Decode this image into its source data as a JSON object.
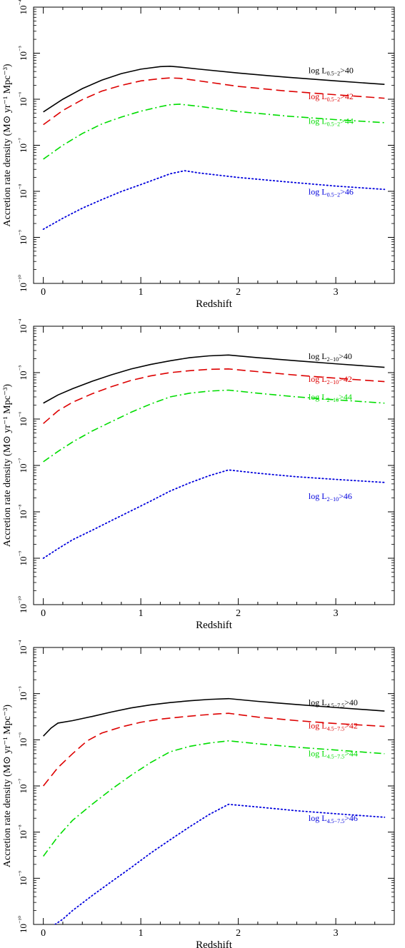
{
  "chart_data": [
    {
      "type": "line",
      "xlabel": "Redshift",
      "ylabel": "Accretion rate density (M⊙ yr⁻¹ Mpc⁻³)",
      "xlim": [
        -0.1,
        3.6
      ],
      "ylim_log10": [
        -10,
        -4
      ],
      "yscale": "log",
      "x_ticks": [
        0,
        1,
        2,
        3
      ],
      "y_ticks": [
        {
          "exp": -10,
          "label": "10⁻¹⁰"
        },
        {
          "exp": -9,
          "label": "10⁻⁹"
        },
        {
          "exp": -8,
          "label": "10⁻⁸"
        },
        {
          "exp": -7,
          "label": "10⁻⁷"
        },
        {
          "exp": -6,
          "label": "10⁻⁶"
        },
        {
          "exp": -5,
          "label": "10⁻⁵"
        },
        {
          "exp": -4,
          "label": "10⁻⁴"
        }
      ],
      "band": "0.5−2",
      "series": [
        {
          "name": "log L0.5−2>40",
          "label_prefix": "log L",
          "label_sub": "0.5−2",
          "label_suffix": ">40",
          "color": "#000000",
          "style": "solid",
          "x": [
            0,
            0.2,
            0.4,
            0.6,
            0.8,
            1.0,
            1.2,
            1.3,
            1.4,
            1.6,
            2.0,
            2.5,
            3.0,
            3.5
          ],
          "y": [
            5.3e-07,
            1e-06,
            1.7e-06,
            2.6e-06,
            3.6e-06,
            4.5e-06,
            5.1e-06,
            5.2e-06,
            5e-06,
            4.5e-06,
            3.7e-06,
            3e-06,
            2.5e-06,
            2.1e-06
          ],
          "label_x": 2.72,
          "label_y": 3.7e-06
        },
        {
          "name": "log L0.5−2>42",
          "label_prefix": "log L",
          "label_sub": "0.5−2",
          "label_suffix": ">42",
          "color": "#dd0000",
          "style": "dashed",
          "x": [
            0,
            0.2,
            0.4,
            0.6,
            0.8,
            1.0,
            1.2,
            1.3,
            1.4,
            1.6,
            2.0,
            2.5,
            3.0,
            3.5
          ],
          "y": [
            2.8e-07,
            5.7e-07,
            9.8e-07,
            1.5e-06,
            2e-06,
            2.5e-06,
            2.8e-06,
            2.9e-06,
            2.85e-06,
            2.5e-06,
            1.9e-06,
            1.5e-06,
            1.25e-06,
            1.05e-06
          ],
          "label_x": 2.72,
          "label_y": 1e-06
        },
        {
          "name": "log L0.5−2>44",
          "label_prefix": "log L",
          "label_sub": "0.5−2",
          "label_suffix": ">44",
          "color": "#00dd00",
          "style": "dashdot",
          "x": [
            0,
            0.2,
            0.4,
            0.6,
            0.8,
            1.0,
            1.2,
            1.3,
            1.4,
            1.6,
            2.0,
            2.5,
            3.0,
            3.5
          ],
          "y": [
            5e-08,
            1e-07,
            1.8e-07,
            2.9e-07,
            4.1e-07,
            5.5e-07,
            6.9e-07,
            7.6e-07,
            7.8e-07,
            7e-07,
            5.4e-07,
            4.3e-07,
            3.6e-07,
            3.1e-07
          ],
          "label_x": 2.72,
          "label_y": 2.9e-07
        },
        {
          "name": "log L0.5−2>46",
          "label_prefix": "log L",
          "label_sub": "0.5−2",
          "label_suffix": ">46",
          "color": "#0000dd",
          "style": "dotted",
          "x": [
            0,
            0.2,
            0.4,
            0.6,
            0.8,
            1.0,
            1.2,
            1.3,
            1.45,
            1.6,
            2.0,
            2.5,
            3.0,
            3.5
          ],
          "y": [
            1.5e-09,
            2.6e-09,
            4.3e-09,
            6.6e-09,
            9.9e-09,
            1.4e-08,
            2e-08,
            2.4e-08,
            2.8e-08,
            2.5e-08,
            2e-08,
            1.6e-08,
            1.3e-08,
            1.1e-08
          ],
          "label_x": 2.72,
          "label_y": 8.5e-09
        }
      ]
    },
    {
      "type": "line",
      "xlabel": "Redshift",
      "ylabel": "Accretion rate density (M⊙ yr⁻¹ Mpc⁻³)",
      "xlim": [
        -0.1,
        3.6
      ],
      "ylim_log10": [
        -10,
        -4
      ],
      "yscale": "log",
      "x_ticks": [
        0,
        1,
        2,
        3
      ],
      "y_ticks": [
        {
          "exp": -10,
          "label": "10⁻¹⁰"
        },
        {
          "exp": -9,
          "label": "10⁻⁹"
        },
        {
          "exp": -8,
          "label": "10⁻⁸"
        },
        {
          "exp": -7,
          "label": "10⁻⁷"
        },
        {
          "exp": -6,
          "label": "10⁻⁶"
        },
        {
          "exp": -5,
          "label": "10⁻⁵"
        },
        {
          "exp": -4,
          "label": "10⁻⁴"
        }
      ],
      "band": "2−10",
      "series": [
        {
          "name": "log L2−10>40",
          "label_prefix": "log L",
          "label_sub": "2−10",
          "label_suffix": ">40",
          "color": "#000000",
          "style": "solid",
          "x": [
            0,
            0.15,
            0.3,
            0.5,
            0.7,
            0.9,
            1.1,
            1.3,
            1.5,
            1.7,
            1.9,
            2.2,
            2.6,
            3.0,
            3.5
          ],
          "y": [
            2.2e-06,
            3.3e-06,
            4.5e-06,
            6.5e-06,
            9e-06,
            1.2e-05,
            1.5e-05,
            1.8e-05,
            2.1e-05,
            2.3e-05,
            2.4e-05,
            2.1e-05,
            1.8e-05,
            1.55e-05,
            1.3e-05
          ],
          "label_x": 2.72,
          "label_y": 1.95e-05
        },
        {
          "name": "log L2−10>42",
          "label_prefix": "log L",
          "label_sub": "2−10",
          "label_suffix": ">42",
          "color": "#dd0000",
          "style": "dashed",
          "x": [
            0,
            0.15,
            0.3,
            0.5,
            0.7,
            0.9,
            1.1,
            1.3,
            1.5,
            1.7,
            1.9,
            2.2,
            2.6,
            3.0,
            3.5
          ],
          "y": [
            8e-07,
            1.5e-06,
            2.3e-06,
            3.5e-06,
            5e-06,
            6.8e-06,
            8.5e-06,
            1e-05,
            1.1e-05,
            1.18e-05,
            1.2e-05,
            1.05e-05,
            8.8e-06,
            7.6e-06,
            6.4e-06
          ],
          "label_x": 2.72,
          "label_y": 6.3e-06
        },
        {
          "name": "log L2−10>44",
          "label_prefix": "log L",
          "label_sub": "2−10",
          "label_suffix": ">44",
          "color": "#00dd00",
          "style": "dashdot",
          "x": [
            0,
            0.15,
            0.3,
            0.5,
            0.7,
            0.9,
            1.1,
            1.3,
            1.5,
            1.7,
            1.9,
            2.2,
            2.6,
            3.0,
            3.5
          ],
          "y": [
            1.2e-07,
            2e-07,
            3.2e-07,
            5.5e-07,
            8.8e-07,
            1.4e-06,
            2.1e-06,
            3e-06,
            3.6e-06,
            4e-06,
            4.2e-06,
            3.6e-06,
            3e-06,
            2.6e-06,
            2.2e-06
          ],
          "label_x": 2.72,
          "label_y": 2.6e-06
        },
        {
          "name": "log L2−10>46",
          "label_prefix": "log L",
          "label_sub": "2−10",
          "label_suffix": ">46",
          "color": "#0000dd",
          "style": "dotted",
          "x": [
            0,
            0.15,
            0.3,
            0.5,
            0.7,
            0.9,
            1.1,
            1.3,
            1.5,
            1.7,
            1.9,
            2.2,
            2.6,
            3.0,
            3.5
          ],
          "y": [
            1e-09,
            1.6e-09,
            2.5e-09,
            4e-09,
            6.5e-09,
            1.05e-08,
            1.7e-08,
            2.8e-08,
            4.2e-08,
            6e-08,
            8e-08,
            6.8e-08,
            5.7e-08,
            5e-08,
            4.3e-08
          ],
          "label_x": 2.72,
          "label_y": 1.9e-08
        }
      ]
    },
    {
      "type": "line",
      "xlabel": "Redshift",
      "ylabel": "Accretion rate density (M⊙ yr⁻¹ Mpc⁻³)",
      "xlim": [
        -0.1,
        3.6
      ],
      "ylim_log10": [
        -10,
        -4
      ],
      "yscale": "log",
      "x_ticks": [
        0,
        1,
        2,
        3
      ],
      "y_ticks": [
        {
          "exp": -10,
          "label": "10⁻¹⁰"
        },
        {
          "exp": -9,
          "label": "10⁻⁹"
        },
        {
          "exp": -8,
          "label": "10⁻⁸"
        },
        {
          "exp": -7,
          "label": "10⁻⁷"
        },
        {
          "exp": -6,
          "label": "10⁻⁶"
        },
        {
          "exp": -5,
          "label": "10⁻⁵"
        },
        {
          "exp": -4,
          "label": "10⁻⁴"
        }
      ],
      "band": "4.5−7.5",
      "series": [
        {
          "name": "log L4.5−7.5>40",
          "label_prefix": "log L",
          "label_sub": "4.5−7.5",
          "label_suffix": ">40",
          "color": "#000000",
          "style": "solid",
          "x": [
            0,
            0.08,
            0.15,
            0.3,
            0.5,
            0.7,
            0.9,
            1.1,
            1.3,
            1.5,
            1.7,
            1.9,
            2.2,
            2.6,
            3.0,
            3.5
          ],
          "y": [
            1.2e-06,
            1.8e-06,
            2.3e-06,
            2.6e-06,
            3.2e-06,
            4e-06,
            4.9e-06,
            5.7e-06,
            6.4e-06,
            7e-06,
            7.5e-06,
            7.8e-06,
            6.8e-06,
            5.8e-06,
            5e-06,
            4.2e-06
          ],
          "label_x": 2.72,
          "label_y": 5.6e-06
        },
        {
          "name": "log L4.5−7.5>42",
          "label_prefix": "log L",
          "label_sub": "4.5−7.5",
          "label_suffix": ">42",
          "color": "#dd0000",
          "style": "dashed",
          "x": [
            0,
            0.15,
            0.3,
            0.45,
            0.6,
            0.8,
            1.0,
            1.2,
            1.4,
            1.6,
            1.8,
            1.9,
            2.2,
            2.6,
            3.0,
            3.5
          ],
          "y": [
            1e-07,
            2.5e-07,
            5e-07,
            9.5e-07,
            1.4e-06,
            1.9e-06,
            2.4e-06,
            2.8e-06,
            3.1e-06,
            3.4e-06,
            3.65e-06,
            3.75e-06,
            3.1e-06,
            2.6e-06,
            2.25e-06,
            1.95e-06
          ],
          "label_x": 2.72,
          "label_y": 1.75e-06
        },
        {
          "name": "log L4.5−7.5>44",
          "label_prefix": "log L",
          "label_sub": "4.5−7.5",
          "label_suffix": ">44",
          "color": "#00dd00",
          "style": "dashdot",
          "x": [
            0,
            0.15,
            0.3,
            0.5,
            0.7,
            0.9,
            1.1,
            1.3,
            1.5,
            1.7,
            1.9,
            2.2,
            2.6,
            3.0,
            3.5
          ],
          "y": [
            3e-09,
            8e-09,
            1.8e-08,
            4e-08,
            8.5e-08,
            1.7e-07,
            3.2e-07,
            5.5e-07,
            7.2e-07,
            8.5e-07,
            9.5e-07,
            8.2e-07,
            6.9e-07,
            6e-07,
            5e-07
          ],
          "label_x": 2.72,
          "label_y": 4.4e-07
        },
        {
          "name": "log L4.5−7.5>46",
          "label_prefix": "log L",
          "label_sub": "4.5−7.5",
          "label_suffix": ">46",
          "color": "#0000dd",
          "style": "dotted",
          "x": [
            0.12,
            0.2,
            0.3,
            0.5,
            0.7,
            0.9,
            1.1,
            1.3,
            1.5,
            1.7,
            1.9,
            2.2,
            2.6,
            3.0,
            3.5
          ],
          "y": [
            1e-10,
            1.3e-10,
            2e-10,
            4.2e-10,
            8.5e-10,
            1.7e-09,
            3.5e-09,
            6.8e-09,
            1.3e-08,
            2.4e-08,
            4e-08,
            3.5e-08,
            2.9e-08,
            2.5e-08,
            2.1e-08
          ],
          "label_x": 2.72,
          "label_y": 1.75e-08
        }
      ]
    }
  ]
}
